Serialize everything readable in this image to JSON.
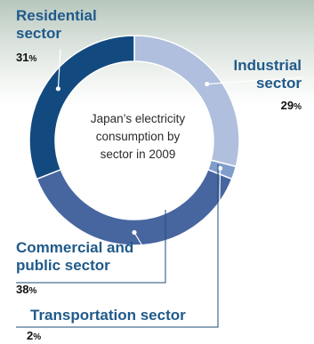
{
  "chart_data": {
    "type": "pie",
    "title": "Japan's electricity consumption by sector in 2009",
    "segments": [
      {
        "label": "Industrial sector",
        "value": 29,
        "display": "29",
        "color": "#afbfdd"
      },
      {
        "label": "Transportation sector",
        "value": 2,
        "display": "2",
        "color": "#7f9ccb"
      },
      {
        "label": "Commercial and public sector",
        "value": 38,
        "display": "38",
        "color": "#4766a0"
      },
      {
        "label": "Residential sector",
        "value": 31,
        "display": "31",
        "color": "#124a80"
      }
    ],
    "unit": "%"
  },
  "labels": {
    "industrial": [
      "Industrial",
      "sector"
    ],
    "transportation": "Transportation sector",
    "commercial": [
      "Commercial and",
      "public sector"
    ],
    "residential": [
      "Residential",
      "sector"
    ]
  },
  "center_text": [
    "Japan’s electricity",
    "consumption by",
    "sector in 2009"
  ]
}
